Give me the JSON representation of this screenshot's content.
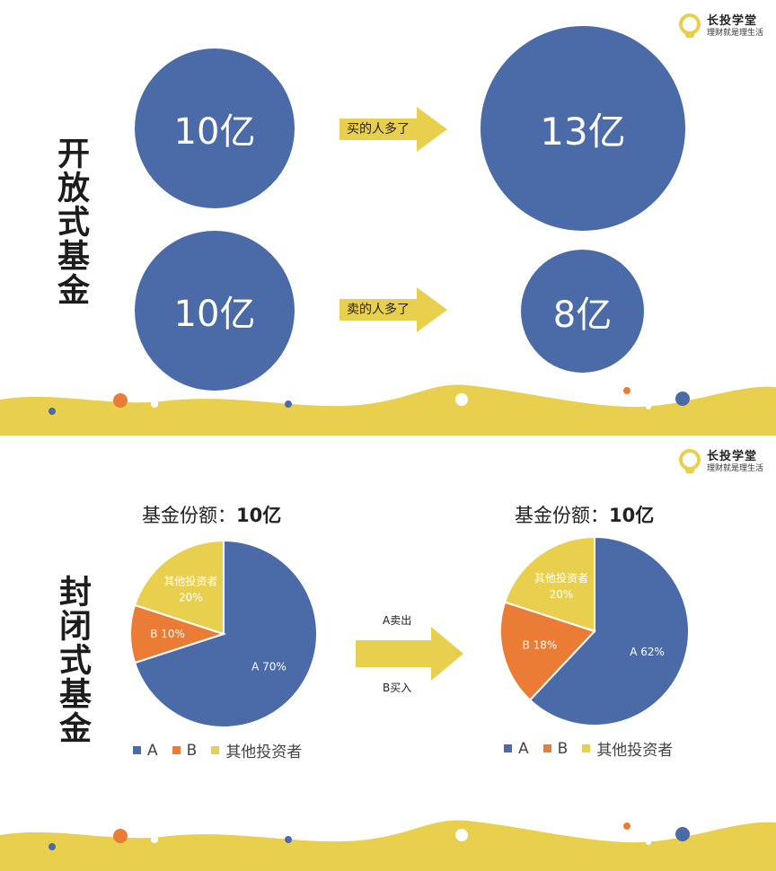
{
  "brand": {
    "name": "长投学堂",
    "tagline": "理财就是理生活"
  },
  "colors": {
    "blue": "#4a6ba8",
    "orange": "#ea7c35",
    "yellow": "#e9cf4e",
    "dark": "#1c1c1c"
  },
  "open_fund": {
    "title": "开放式基金",
    "rows": [
      {
        "before": "10亿",
        "action": "买的人多了",
        "after": "13亿"
      },
      {
        "before": "10亿",
        "action": "卖的人多了",
        "after": "8亿"
      }
    ]
  },
  "closed_fund": {
    "title": "封闭式基金",
    "transfer_top": "A卖出",
    "transfer_bottom": "B买入",
    "charts_title_prefix": "基金份额：",
    "charts_title_value": "10亿",
    "legend": [
      "A",
      "B",
      "其他投资者"
    ]
  },
  "chart_data": [
    {
      "type": "pie",
      "title": "基金份额：10亿",
      "categories": [
        "A",
        "B",
        "其他投资者"
      ],
      "values": [
        70,
        10,
        20
      ],
      "labels": [
        "A 70%",
        "B 10%",
        "其他投资者 20%"
      ],
      "colors": [
        "#4a6ba8",
        "#ea7c35",
        "#e9cf4e"
      ],
      "legend_position": "bottom"
    },
    {
      "type": "pie",
      "title": "基金份额：10亿",
      "categories": [
        "A",
        "B",
        "其他投资者"
      ],
      "values": [
        62,
        18,
        20
      ],
      "labels": [
        "A 62%",
        "B 18%",
        "其他投资者 20%"
      ],
      "colors": [
        "#4a6ba8",
        "#ea7c35",
        "#e9cf4e"
      ],
      "legend_position": "bottom"
    }
  ]
}
